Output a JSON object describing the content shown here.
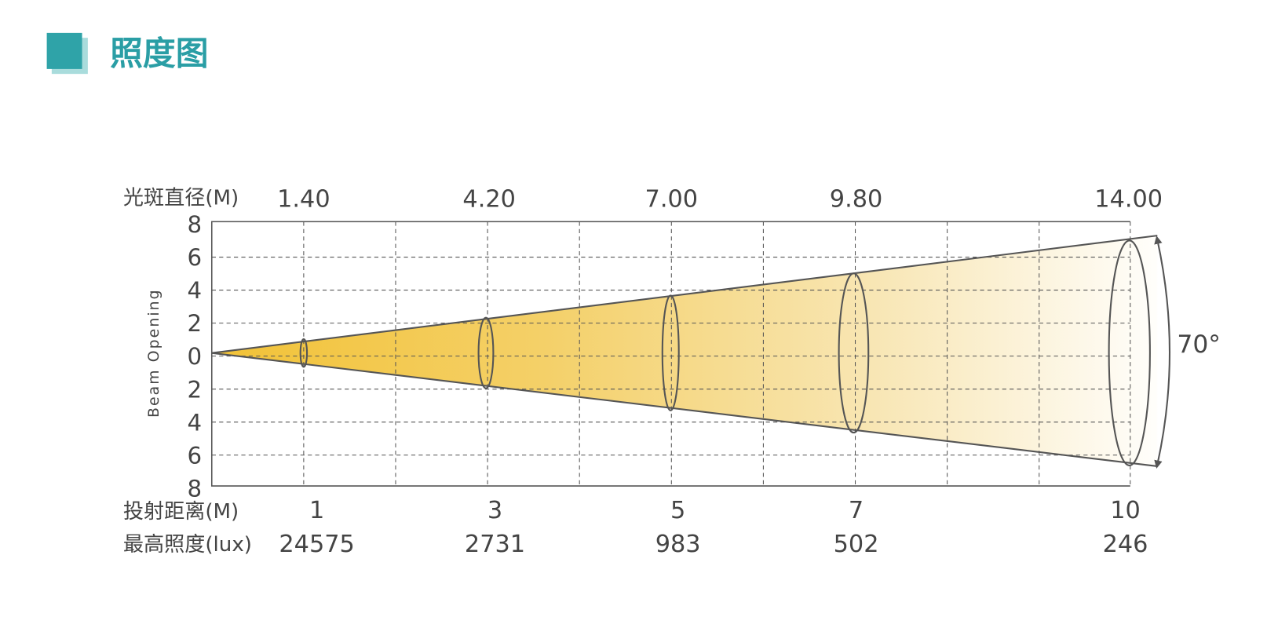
{
  "title": "照度图",
  "chart": {
    "y_axis_label": "Beam Opening",
    "y_tick_labels": [
      "8",
      "6",
      "4",
      "2",
      "0",
      "2",
      "4",
      "6",
      "8"
    ],
    "diameter_label": "光斑直径(M)",
    "diameters": [
      "1.40",
      "4.20",
      "7.00",
      "9.80",
      "14.00"
    ],
    "distance_label": "投射距离(M)",
    "distances": [
      "1",
      "3",
      "5",
      "7",
      "10"
    ],
    "lux_label": "最高照度(lux)",
    "lux": [
      "24575",
      "2731",
      "983",
      "502",
      "246"
    ],
    "angle": "70°"
  }
}
